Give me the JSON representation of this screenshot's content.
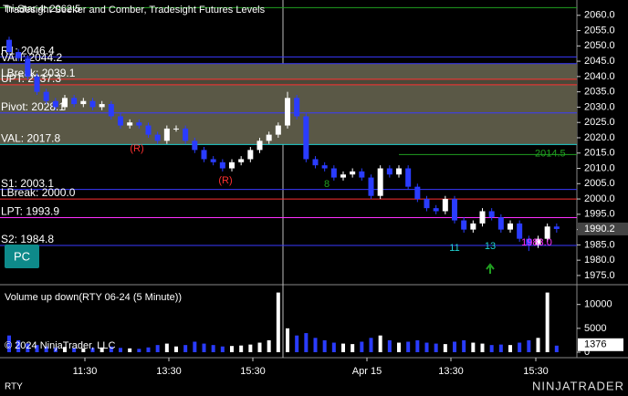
{
  "chart_data": {
    "type": "candlestick",
    "title": "Tradesight Seeker and Comber, Tradesight Futures Levels",
    "top_label": "Tri-Star 4: 2062.5",
    "top_level": 2062.5,
    "side_level_label": "2014.5",
    "side_level": 2014.5,
    "up_color": "#ffffff",
    "down_color": "#2a3cff",
    "open": [
      2052,
      2048,
      2046,
      2040,
      2035,
      2032,
      2030,
      2033,
      2031,
      2032,
      2030,
      2031,
      2027,
      2024,
      2025,
      2024,
      2021,
      2019,
      2023,
      2023,
      2019,
      2016,
      2013,
      2012,
      2010,
      2012,
      2013,
      2016,
      2019,
      2021,
      2024,
      2033,
      2027,
      2013,
      2011,
      2010,
      2007,
      2008,
      2009,
      2007,
      2001,
      2010,
      2008,
      2010,
      2004,
      2000,
      1997,
      1996,
      2000,
      1993,
      1990,
      1992,
      1996,
      1994,
      1990,
      1992,
      1987,
      1985,
      1987,
      1991
    ],
    "high": [
      2053,
      2049,
      2047,
      2041,
      2036,
      2033,
      2034,
      2034,
      2033,
      2033,
      2032,
      2032,
      2028,
      2026,
      2026,
      2025,
      2022,
      2024,
      2024,
      2024,
      2020,
      2017,
      2014,
      2013,
      2013,
      2014,
      2017,
      2020,
      2022,
      2025,
      2035,
      2034,
      2028,
      2014,
      2012,
      2011,
      2009,
      2010,
      2010,
      2008,
      2011,
      2011,
      2011,
      2011,
      2005,
      2001,
      1998,
      2001,
      2001,
      1994,
      1993,
      1997,
      1997,
      1995,
      1993,
      1993,
      1988,
      1988,
      1992,
      1992
    ],
    "low": [
      2047,
      2045,
      2039,
      2034,
      2031,
      2029,
      2029,
      2030,
      2030,
      2029,
      2029,
      2026,
      2023,
      2023,
      2023,
      2020,
      2018,
      2018,
      2022,
      2018,
      2015,
      2012,
      2011,
      2009,
      2009,
      2011,
      2012,
      2015,
      2018,
      2020,
      2023,
      2026,
      2012,
      2010,
      2009,
      2006,
      2006,
      2007,
      2006,
      2000,
      2000,
      2007,
      2007,
      2003,
      1999,
      1996,
      1995,
      1995,
      1992,
      1989,
      1989,
      1991,
      1993,
      1989,
      1989,
      1986,
      1983,
      1984,
      1986,
      1989
    ],
    "close": [
      2048,
      2046,
      2040,
      2035,
      2032,
      2030,
      2033,
      2031,
      2032,
      2030,
      2031,
      2027,
      2024,
      2025,
      2024,
      2021,
      2019,
      2023,
      2023,
      2019,
      2016,
      2013,
      2012,
      2010,
      2012,
      2013,
      2016,
      2019,
      2021,
      2024,
      2033,
      2027,
      2013,
      2011,
      2010,
      2007,
      2008,
      2009,
      2007,
      2001,
      2010,
      2008,
      2010,
      2004,
      2000,
      1997,
      1996,
      2000,
      1993,
      1990,
      1992,
      1996,
      1994,
      1990,
      1992,
      1987,
      1985,
      1987,
      1991,
      1990.2
    ],
    "ylim": [
      1972,
      2065
    ],
    "yticks": [
      {
        "value": 2060,
        "label": "2060.0"
      },
      {
        "value": 2055,
        "label": "2055.0"
      },
      {
        "value": 2050,
        "label": "2050.0"
      },
      {
        "value": 2045,
        "label": "2045.0"
      },
      {
        "value": 2040,
        "label": "2040.0"
      },
      {
        "value": 2035,
        "label": "2035.0"
      },
      {
        "value": 2030,
        "label": "2030.0"
      },
      {
        "value": 2025,
        "label": "2025.0"
      },
      {
        "value": 2020,
        "label": "2020.0"
      },
      {
        "value": 2015,
        "label": "2015.0"
      },
      {
        "value": 2010,
        "label": "2010.0"
      },
      {
        "value": 2005,
        "label": "2005.0"
      },
      {
        "value": 2000,
        "label": "2000.0"
      },
      {
        "value": 1995,
        "label": "1995.0"
      },
      {
        "value": 1990,
        "label": "1990.0"
      },
      {
        "value": 1985,
        "label": "1985.0"
      },
      {
        "value": 1980,
        "label": "1980.0"
      },
      {
        "value": 1975,
        "label": "1975.0"
      }
    ],
    "levels": [
      {
        "label": "R1: 2046.4",
        "value": 2046.4,
        "color": "#3a3aff"
      },
      {
        "label": "VAH: 2044.2",
        "value": 2044.2,
        "color": "#3a3aff"
      },
      {
        "label": "LBreak: 2039.1",
        "value": 2039.1,
        "color": "#ff3030"
      },
      {
        "label": "UPT: 2037.3",
        "value": 2037.3,
        "color": "#ff3030"
      },
      {
        "label": "Pivot: 2028.1",
        "value": 2028.1,
        "color": "#3a3aff"
      },
      {
        "label": "VAL: 2017.8",
        "value": 2017.8,
        "color": "#20d0d0"
      },
      {
        "label": "S1: 2003.1",
        "value": 2003.1,
        "color": "#3a3aff"
      },
      {
        "label": "LBreak: 2000.0",
        "value": 2000.0,
        "color": "#ff3030"
      },
      {
        "label": "LPT: 1993.9",
        "value": 1993.9,
        "color": "#ff30ff"
      },
      {
        "label": "S2: 1984.8",
        "value": 1984.8,
        "color": "#3a3aff"
      }
    ],
    "annotations": [
      {
        "text": "(R)",
        "color": "#ff3030"
      },
      {
        "text": "(R)",
        "color": "#ff3030"
      },
      {
        "text": "8",
        "color": "#20a020"
      },
      {
        "text": "11",
        "color": "#20d0d0"
      },
      {
        "text": "13",
        "color": "#20d0d0"
      },
      {
        "text": "1983.0",
        "color": "#ff30ff"
      }
    ],
    "button": "PC",
    "time_labels": [
      "11:30",
      "13:30",
      "15:30",
      "Apr 15",
      "13:30",
      "15:30"
    ],
    "volume": {
      "title": "Volume up down(RTY 06-24 (5 Minute))",
      "values": [
        3500,
        2500,
        1800,
        1500,
        1200,
        1000,
        1100,
        900,
        800,
        900,
        1000,
        1200,
        900,
        800,
        700,
        1000,
        1500,
        1800,
        1200,
        1500,
        2200,
        1800,
        1500,
        1200,
        1300,
        1400,
        1600,
        2000,
        2500,
        12500,
        5000,
        3500,
        4000,
        3000,
        2500,
        2000,
        1800,
        1700,
        2200,
        3000,
        3500,
        2500,
        2000,
        2200,
        2500,
        2000,
        1800,
        1700,
        2200,
        2500,
        2000,
        1800,
        1500,
        1600,
        1500,
        2000,
        2500,
        3000,
        12500,
        1376
      ],
      "ylim": [
        0,
        13000
      ],
      "yticks": [
        0,
        5000,
        10000
      ]
    },
    "copyright": "© 2024 NinjaTrader, LLC",
    "instrument": "RTY",
    "logo": "NINJATRADER"
  }
}
